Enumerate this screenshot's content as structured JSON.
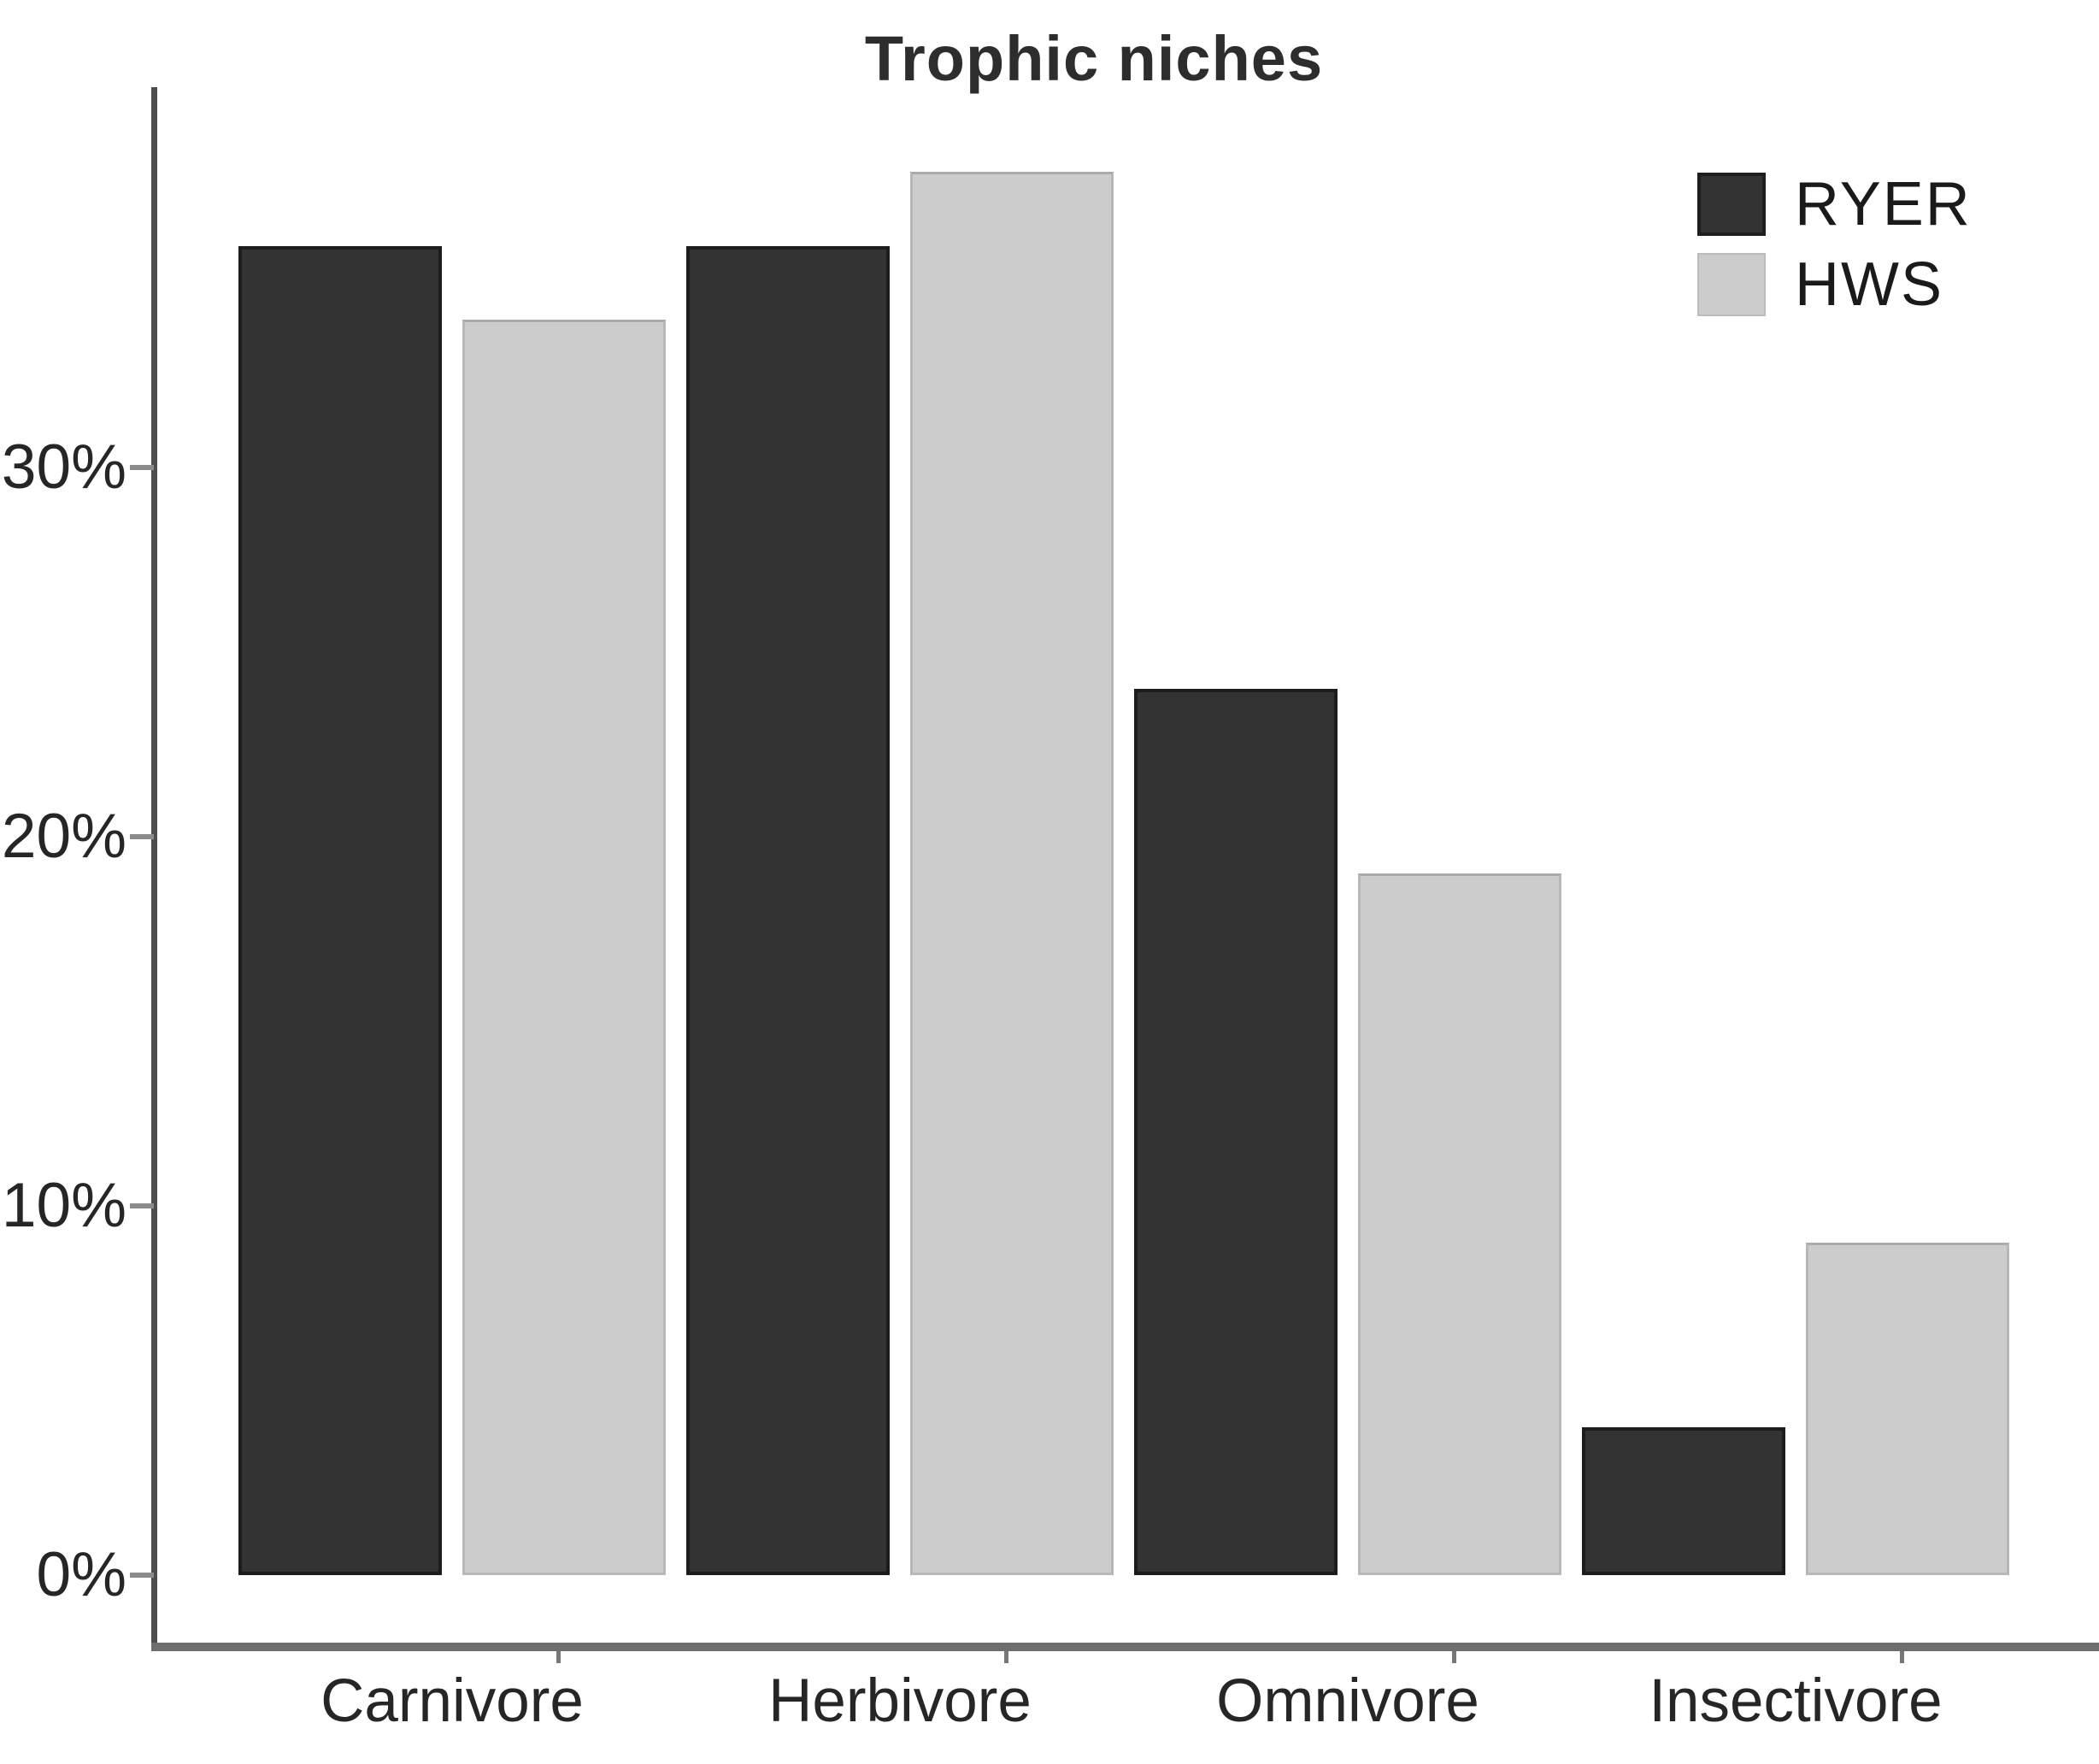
{
  "title": "Trophic niches",
  "chart_data": {
    "type": "bar",
    "title": "Trophic niches",
    "categories": [
      "Carnivore",
      "Herbivore",
      "Omnivore",
      "Insectivore"
    ],
    "series": [
      {
        "name": "RYER",
        "color": "#333333",
        "values": [
          36,
          36,
          24,
          4
        ]
      },
      {
        "name": "HWS",
        "color": "#cccccc",
        "values": [
          34,
          38,
          19,
          9
        ]
      }
    ],
    "value_unit": "%",
    "xlabel": "",
    "ylabel": "",
    "ylim": [
      0,
      40
    ],
    "grid": false,
    "legend_position": "top-right",
    "y_ticks": [
      {
        "value": 0,
        "label": "0%"
      },
      {
        "value": 10,
        "label": "10%"
      },
      {
        "value": 20,
        "label": "20%"
      },
      {
        "value": 30,
        "label": "30%"
      }
    ]
  },
  "legend": {
    "items": [
      {
        "label": "RYER",
        "color": "#333333"
      },
      {
        "label": "HWS",
        "color": "#cccccc"
      }
    ]
  },
  "axis": {
    "text_color": "#262626",
    "line_color": "#4d4d4d"
  }
}
